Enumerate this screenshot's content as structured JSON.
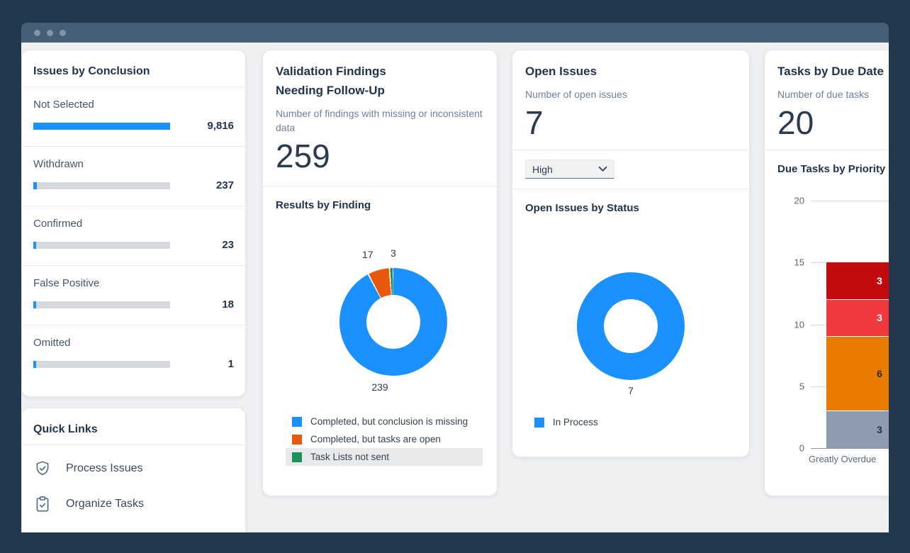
{
  "cards": {
    "issues_by_conclusion": {
      "title": "Issues by Conclusion",
      "max": 9816,
      "bar_color": "#1b90ff",
      "track_color": "#d6dade",
      "rows": [
        {
          "label": "Not Selected",
          "value": "9,816",
          "num": 9816
        },
        {
          "label": "Withdrawn",
          "value": "237",
          "num": 237
        },
        {
          "label": "Confirmed",
          "value": "23",
          "num": 23
        },
        {
          "label": "False Positive",
          "value": "18",
          "num": 18
        },
        {
          "label": "Omitted",
          "value": "1",
          "num": 1
        }
      ]
    },
    "quick_links": {
      "title": "Quick Links",
      "items": [
        {
          "icon": "shield-check-icon",
          "label": "Process Issues"
        },
        {
          "icon": "clipboard-check-icon",
          "label": "Organize Tasks"
        }
      ]
    },
    "validation_findings": {
      "title_line1": "Validation Findings",
      "title_line2": "Needing Follow-Up",
      "subtitle": "Number of findings with missing or inconsistent data",
      "kpi": "259",
      "section_title": "Results by Finding",
      "donut": {
        "values": [
          239,
          17,
          3
        ],
        "colors": [
          "#1b90ff",
          "#e8590f",
          "#1d9157"
        ],
        "labels": {
          "blue": "239",
          "orange": "17",
          "green": "3"
        }
      },
      "legend": [
        {
          "label": "Completed, but conclusion is missing",
          "color": "#1b90ff",
          "highlight": false
        },
        {
          "label": "Completed, but tasks are open",
          "color": "#e8590f",
          "highlight": false
        },
        {
          "label": "Task Lists not sent",
          "color": "#1d9157",
          "highlight": true
        }
      ]
    },
    "open_issues": {
      "title": "Open Issues",
      "subtitle": "Number of open issues",
      "kpi": "7",
      "filter_value": "High",
      "section_title": "Open Issues by Status",
      "donut": {
        "values": [
          7
        ],
        "colors": [
          "#1b90ff"
        ],
        "label": "7"
      },
      "legend": [
        {
          "label": "In Process",
          "color": "#1b90ff"
        }
      ]
    },
    "tasks_by_due_date": {
      "title": "Tasks by Due Date",
      "subtitle": "Number of due tasks",
      "kpi": "20",
      "section_title": "Due Tasks by Priority",
      "chart": {
        "y_max": 20,
        "y_ticks": [
          "20",
          "15",
          "10",
          "5",
          "0"
        ],
        "category": "Greatly Overdue",
        "segments": [
          {
            "label": "3",
            "value": 3,
            "color": "#8d9cb1",
            "text_color": "#223244"
          },
          {
            "label": "6",
            "value": 6,
            "color": "#e87b00",
            "text_color": "#3a2a10"
          },
          {
            "label": "3",
            "value": 3,
            "color": "#f2383f",
            "text_color": "#ffffff"
          },
          {
            "label": "3",
            "value": 3,
            "color": "#c10b0e",
            "text_color": "#ffffff"
          }
        ]
      }
    }
  },
  "chart_data": [
    {
      "type": "bar",
      "title": "Issues by Conclusion",
      "categories": [
        "Not Selected",
        "Withdrawn",
        "Confirmed",
        "False Positive",
        "Omitted"
      ],
      "values": [
        9816,
        237,
        23,
        18,
        1
      ],
      "orientation": "horizontal"
    },
    {
      "type": "pie",
      "title": "Results by Finding",
      "categories": [
        "Completed, but conclusion is missing",
        "Completed, but tasks are open",
        "Task Lists not sent"
      ],
      "values": [
        239,
        17,
        3
      ],
      "legend_position": "bottom"
    },
    {
      "type": "pie",
      "title": "Open Issues by Status",
      "categories": [
        "In Process"
      ],
      "values": [
        7
      ],
      "legend_position": "bottom"
    },
    {
      "type": "bar",
      "title": "Due Tasks by Priority",
      "categories": [
        "Greatly Overdue"
      ],
      "series": [
        {
          "name": "segment-bottom-gray",
          "values": [
            3
          ]
        },
        {
          "name": "segment-orange",
          "values": [
            6
          ]
        },
        {
          "name": "segment-red",
          "values": [
            3
          ]
        },
        {
          "name": "segment-dark-red",
          "values": [
            3
          ]
        }
      ],
      "stacked": true,
      "ylim": [
        0,
        20
      ],
      "grid": true
    }
  ]
}
